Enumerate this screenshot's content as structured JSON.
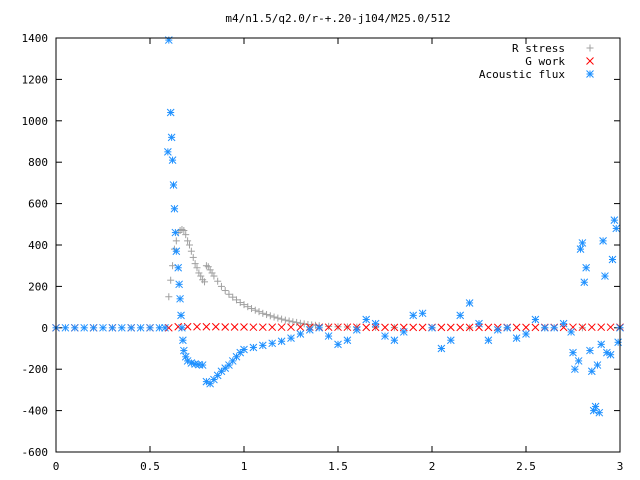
{
  "chart_data": {
    "type": "scatter",
    "title": "m4/n1.5/q2.0/r-+.20-j104/M25.0/512",
    "xlabel": "",
    "ylabel": "",
    "xlim": [
      0,
      3
    ],
    "ylim": [
      -600,
      1400
    ],
    "xticks": [
      "0",
      "0.5",
      "1",
      "1.5",
      "2",
      "2.5",
      "3"
    ],
    "yticks": [
      "-600",
      "-400",
      "-200",
      "0",
      "200",
      "400",
      "600",
      "800",
      "1000",
      "1200",
      "1400"
    ],
    "grid": false,
    "legend_position": "top-right",
    "series": [
      {
        "name": "R stress",
        "marker": "plus",
        "color": "#a0a0a0",
        "points": [
          [
            0.6,
            150
          ],
          [
            0.61,
            230
          ],
          [
            0.62,
            300
          ],
          [
            0.63,
            380
          ],
          [
            0.64,
            420
          ],
          [
            0.65,
            460
          ],
          [
            0.66,
            470
          ],
          [
            0.67,
            475
          ],
          [
            0.68,
            470
          ],
          [
            0.69,
            450
          ],
          [
            0.7,
            420
          ],
          [
            0.71,
            400
          ],
          [
            0.72,
            370
          ],
          [
            0.73,
            340
          ],
          [
            0.74,
            310
          ],
          [
            0.75,
            290
          ],
          [
            0.76,
            265
          ],
          [
            0.77,
            250
          ],
          [
            0.78,
            232
          ],
          [
            0.79,
            222
          ],
          [
            0.8,
            300
          ],
          [
            0.81,
            295
          ],
          [
            0.82,
            280
          ],
          [
            0.83,
            265
          ],
          [
            0.84,
            250
          ],
          [
            0.86,
            225
          ],
          [
            0.88,
            200
          ],
          [
            0.9,
            180
          ],
          [
            0.92,
            162
          ],
          [
            0.94,
            148
          ],
          [
            0.96,
            135
          ],
          [
            0.98,
            122
          ],
          [
            1.0,
            112
          ],
          [
            1.02,
            102
          ],
          [
            1.04,
            93
          ],
          [
            1.06,
            85
          ],
          [
            1.08,
            78
          ],
          [
            1.1,
            70
          ],
          [
            1.12,
            64
          ],
          [
            1.14,
            58
          ],
          [
            1.16,
            52
          ],
          [
            1.18,
            47
          ],
          [
            1.2,
            42
          ],
          [
            1.22,
            37
          ],
          [
            1.24,
            33
          ],
          [
            1.26,
            29
          ],
          [
            1.28,
            26
          ],
          [
            1.3,
            22
          ],
          [
            1.32,
            19
          ],
          [
            1.34,
            16
          ],
          [
            1.36,
            14
          ],
          [
            1.38,
            12
          ],
          [
            1.4,
            10
          ],
          [
            1.45,
            7
          ],
          [
            1.5,
            5
          ],
          [
            1.55,
            4
          ],
          [
            1.6,
            3
          ],
          [
            1.7,
            2
          ],
          [
            1.8,
            1
          ],
          [
            2.0,
            0
          ],
          [
            2.2,
            0
          ],
          [
            2.4,
            0
          ],
          [
            2.6,
            0
          ],
          [
            2.8,
            0
          ],
          [
            3.0,
            0
          ]
        ]
      },
      {
        "name": "G work",
        "marker": "cross",
        "color": "#ff0000",
        "points": [
          [
            0.0,
            0
          ],
          [
            0.1,
            0
          ],
          [
            0.2,
            0
          ],
          [
            0.3,
            0
          ],
          [
            0.4,
            0
          ],
          [
            0.5,
            0
          ],
          [
            0.6,
            0
          ],
          [
            0.65,
            5
          ],
          [
            0.7,
            5
          ],
          [
            0.75,
            5
          ],
          [
            0.8,
            5
          ],
          [
            0.85,
            5
          ],
          [
            0.9,
            4
          ],
          [
            0.95,
            4
          ],
          [
            1.0,
            4
          ],
          [
            1.05,
            3
          ],
          [
            1.1,
            3
          ],
          [
            1.15,
            3
          ],
          [
            1.2,
            3
          ],
          [
            1.25,
            3
          ],
          [
            1.3,
            3
          ],
          [
            1.35,
            3
          ],
          [
            1.4,
            3
          ],
          [
            1.45,
            3
          ],
          [
            1.5,
            3
          ],
          [
            1.55,
            3
          ],
          [
            1.6,
            3
          ],
          [
            1.65,
            2
          ],
          [
            1.7,
            2
          ],
          [
            1.75,
            2
          ],
          [
            1.8,
            2
          ],
          [
            1.85,
            2
          ],
          [
            1.9,
            2
          ],
          [
            1.95,
            2
          ],
          [
            2.0,
            2
          ],
          [
            2.05,
            2
          ],
          [
            2.1,
            2
          ],
          [
            2.15,
            2
          ],
          [
            2.2,
            2
          ],
          [
            2.25,
            2
          ],
          [
            2.3,
            2
          ],
          [
            2.35,
            2
          ],
          [
            2.4,
            2
          ],
          [
            2.45,
            2
          ],
          [
            2.5,
            2
          ],
          [
            2.55,
            2
          ],
          [
            2.6,
            2
          ],
          [
            2.65,
            2
          ],
          [
            2.7,
            2
          ],
          [
            2.75,
            3
          ],
          [
            2.8,
            3
          ],
          [
            2.85,
            3
          ],
          [
            2.9,
            3
          ],
          [
            2.95,
            3
          ],
          [
            3.0,
            3
          ]
        ]
      },
      {
        "name": "Acoustic flux",
        "marker": "star",
        "color": "#1e90ff",
        "points": [
          [
            0.0,
            0
          ],
          [
            0.05,
            0
          ],
          [
            0.1,
            0
          ],
          [
            0.15,
            0
          ],
          [
            0.2,
            0
          ],
          [
            0.25,
            0
          ],
          [
            0.3,
            0
          ],
          [
            0.35,
            0
          ],
          [
            0.4,
            0
          ],
          [
            0.45,
            0
          ],
          [
            0.5,
            0
          ],
          [
            0.55,
            0
          ],
          [
            0.58,
            0
          ],
          [
            0.595,
            850
          ],
          [
            0.6,
            1390
          ],
          [
            0.61,
            1040
          ],
          [
            0.615,
            920
          ],
          [
            0.62,
            810
          ],
          [
            0.625,
            690
          ],
          [
            0.63,
            575
          ],
          [
            0.635,
            460
          ],
          [
            0.64,
            370
          ],
          [
            0.65,
            290
          ],
          [
            0.655,
            210
          ],
          [
            0.66,
            140
          ],
          [
            0.665,
            60
          ],
          [
            0.67,
            0
          ],
          [
            0.675,
            -60
          ],
          [
            0.68,
            -110
          ],
          [
            0.69,
            -140
          ],
          [
            0.7,
            -160
          ],
          [
            0.72,
            -170
          ],
          [
            0.74,
            -175
          ],
          [
            0.76,
            -178
          ],
          [
            0.78,
            -180
          ],
          [
            0.8,
            -260
          ],
          [
            0.82,
            -270
          ],
          [
            0.84,
            -250
          ],
          [
            0.86,
            -230
          ],
          [
            0.88,
            -210
          ],
          [
            0.9,
            -195
          ],
          [
            0.92,
            -180
          ],
          [
            0.94,
            -160
          ],
          [
            0.96,
            -140
          ],
          [
            0.98,
            -120
          ],
          [
            1.0,
            -105
          ],
          [
            1.05,
            -95
          ],
          [
            1.1,
            -85
          ],
          [
            1.15,
            -75
          ],
          [
            1.2,
            -65
          ],
          [
            1.25,
            -50
          ],
          [
            1.3,
            -30
          ],
          [
            1.35,
            -10
          ],
          [
            1.4,
            0
          ],
          [
            1.45,
            -40
          ],
          [
            1.5,
            -80
          ],
          [
            1.55,
            -60
          ],
          [
            1.6,
            -10
          ],
          [
            1.65,
            40
          ],
          [
            1.7,
            20
          ],
          [
            1.75,
            -40
          ],
          [
            1.8,
            -60
          ],
          [
            1.85,
            -20
          ],
          [
            1.9,
            60
          ],
          [
            1.95,
            70
          ],
          [
            2.0,
            0
          ],
          [
            2.05,
            -100
          ],
          [
            2.1,
            -60
          ],
          [
            2.15,
            60
          ],
          [
            2.2,
            120
          ],
          [
            2.25,
            20
          ],
          [
            2.3,
            -60
          ],
          [
            2.35,
            -10
          ],
          [
            2.4,
            0
          ],
          [
            2.45,
            -50
          ],
          [
            2.5,
            -30
          ],
          [
            2.55,
            40
          ],
          [
            2.6,
            0
          ],
          [
            2.65,
            0
          ],
          [
            2.7,
            20
          ],
          [
            2.74,
            -20
          ],
          [
            2.75,
            -120
          ],
          [
            2.76,
            -200
          ],
          [
            2.78,
            -160
          ],
          [
            2.79,
            380
          ],
          [
            2.8,
            410
          ],
          [
            2.81,
            220
          ],
          [
            2.82,
            290
          ],
          [
            2.84,
            -110
          ],
          [
            2.85,
            -210
          ],
          [
            2.86,
            -400
          ],
          [
            2.87,
            -380
          ],
          [
            2.88,
            -180
          ],
          [
            2.89,
            -410
          ],
          [
            2.9,
            -80
          ],
          [
            2.91,
            420
          ],
          [
            2.92,
            250
          ],
          [
            2.93,
            -120
          ],
          [
            2.95,
            -130
          ],
          [
            2.96,
            330
          ],
          [
            2.97,
            520
          ],
          [
            2.98,
            480
          ],
          [
            2.99,
            -70
          ],
          [
            3.0,
            0
          ]
        ]
      }
    ]
  }
}
